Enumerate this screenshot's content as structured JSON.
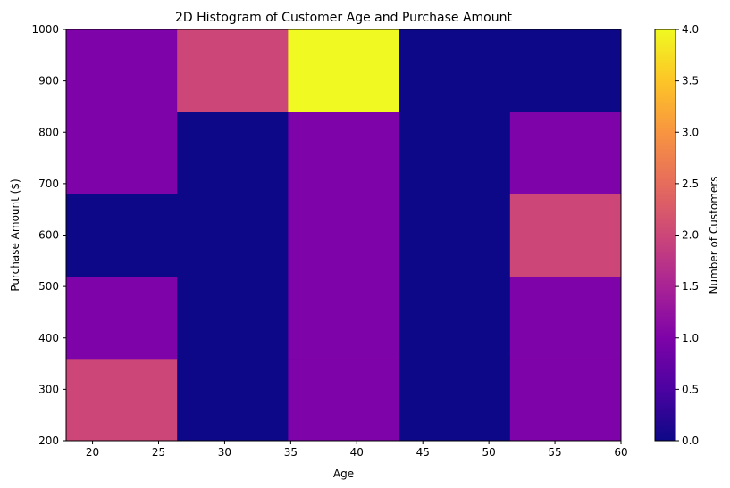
{
  "chart_data": {
    "type": "heatmap",
    "title": "2D Histogram of Customer Age and Purchase Amount",
    "xlabel": "Age",
    "ylabel": "Purchase Amount ($)",
    "colorbar_label": "Number of Customers",
    "colormap": "plasma",
    "xlim": [
      18,
      60
    ],
    "ylim": [
      200,
      1000
    ],
    "x_ticks": [
      "20",
      "25",
      "30",
      "35",
      "40",
      "45",
      "50",
      "55",
      "60"
    ],
    "y_ticks": [
      "200",
      "300",
      "400",
      "500",
      "600",
      "700",
      "800",
      "900",
      "1000"
    ],
    "colorbar_ticks": [
      "0.0",
      "0.5",
      "1.0",
      "1.5",
      "2.0",
      "2.5",
      "3.0",
      "3.5",
      "4.0"
    ],
    "colorbar_range": [
      0,
      4
    ],
    "x_edges": [
      18,
      26.4,
      34.8,
      43.2,
      51.6,
      60
    ],
    "y_edges": [
      200,
      360,
      520,
      680,
      840,
      1000
    ],
    "counts": [
      [
        2,
        0,
        1,
        0,
        1
      ],
      [
        1,
        0,
        1,
        0,
        1
      ],
      [
        0,
        0,
        1,
        0,
        2
      ],
      [
        1,
        0,
        1,
        0,
        1
      ],
      [
        1,
        2,
        4,
        0,
        0
      ]
    ]
  }
}
